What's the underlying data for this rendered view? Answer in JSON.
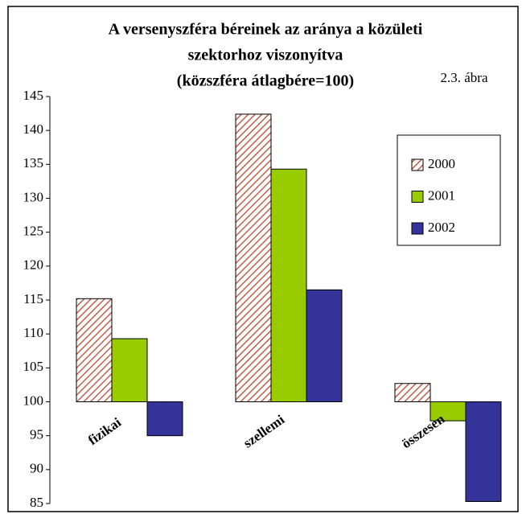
{
  "chart_data": {
    "type": "bar",
    "title": [
      "A versenyszféra béreinek az aránya a közületi",
      "szektorhoz viszonyítva",
      "(közszféra átlagbére=100)"
    ],
    "annotation": "2.3. ábra",
    "categories": [
      "fizikai",
      "szellemi",
      "összesen"
    ],
    "series": [
      {
        "name": "2000",
        "color": "#c0604c",
        "pattern": "hatch",
        "values": [
          115.2,
          142.4,
          102.7
        ]
      },
      {
        "name": "2001",
        "color": "#99cc00",
        "values": [
          109.3,
          134.3,
          97.2
        ]
      },
      {
        "name": "2002",
        "color": "#333399",
        "values": [
          95,
          116.5,
          85.3
        ]
      }
    ],
    "bar_base": 100,
    "ylim": [
      85,
      145
    ],
    "yticks": [
      85,
      90,
      95,
      100,
      105,
      110,
      115,
      120,
      125,
      130,
      135,
      140,
      145
    ],
    "grid": false,
    "legend": "right"
  }
}
